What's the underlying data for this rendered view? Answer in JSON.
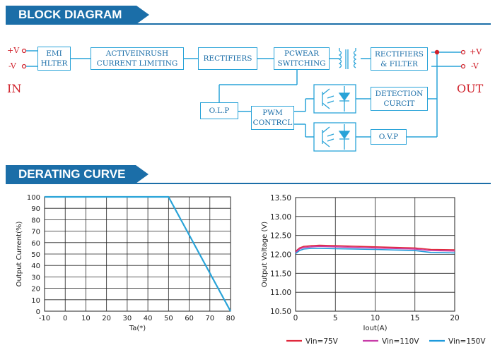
{
  "block_diagram": {
    "title": "BLOCK DIAGRAM",
    "in_plus": "+V",
    "in_minus": "-V",
    "in_label": "IN",
    "out_plus": "+V",
    "out_minus": "-V",
    "out_label": "OUT",
    "blocks": {
      "emi": "EMI\nHLTER",
      "inrush": "ACTIVEINRUSH\nCURRENT  LIMITING",
      "rect_in": "RECTIFIERS",
      "pcwear": "PCWEAR\nSWITCHING",
      "rect_out": "RECTIFIERS\n& FILTER",
      "olp": "O.L.P",
      "pwm": "PWM\nCONTRCL",
      "detection": "DETECTION\nCURCIT",
      "ovp": "O.V.P"
    }
  },
  "derating": {
    "title": "DERATING CURVE"
  },
  "colors": {
    "banner": "#1b6ea8",
    "line": "#29a3d8",
    "label_red": "#d0202a",
    "curve": "#29a3d8"
  },
  "chart_data": [
    {
      "type": "line",
      "xlabel": "Ta(*)",
      "ylabel": "Output Current(%)",
      "xlim": [
        -10,
        80
      ],
      "ylim": [
        0,
        100
      ],
      "xticks": [
        "-10",
        "0",
        "10",
        "20",
        "30",
        "40",
        "50",
        "60",
        "70",
        "80"
      ],
      "yticks": [
        "0",
        "10",
        "20",
        "30",
        "40",
        "50",
        "60",
        "70",
        "80",
        "90",
        "100"
      ],
      "grid": true,
      "series": [
        {
          "x": [
            -10,
            40,
            50,
            80
          ],
          "y": [
            100,
            100,
            100,
            0
          ]
        }
      ]
    },
    {
      "type": "line",
      "xlabel": "Iout(A)",
      "ylabel": "Output Voltage  (V)",
      "xlim": [
        0,
        20
      ],
      "ylim": [
        10.5,
        13.5
      ],
      "xticks": [
        "0",
        "5",
        "10",
        "15",
        "20"
      ],
      "yticks": [
        "10.50",
        "11.00",
        "11.50",
        "12.00",
        "12.50",
        "13.00",
        "13.50"
      ],
      "grid": true,
      "legend": "bottom",
      "series": [
        {
          "name": "Vin=75V",
          "color": "#e0283c",
          "x": [
            0,
            0.5,
            1,
            2,
            3,
            5,
            10,
            15,
            17,
            20
          ],
          "y": [
            12.08,
            12.17,
            12.21,
            12.23,
            12.24,
            12.23,
            12.2,
            12.17,
            12.13,
            12.12
          ]
        },
        {
          "name": "Vin=110V",
          "color": "#c83ca8",
          "x": [
            0,
            0.5,
            1,
            2,
            3,
            5,
            10,
            15,
            17,
            20
          ],
          "y": [
            12.05,
            12.14,
            12.18,
            12.2,
            12.21,
            12.2,
            12.17,
            12.14,
            12.1,
            12.09
          ]
        },
        {
          "name": "Vin=150V",
          "color": "#1e9adc",
          "x": [
            0,
            0.5,
            1,
            2,
            3,
            5,
            10,
            15,
            17,
            20
          ],
          "y": [
            12.02,
            12.1,
            12.14,
            12.16,
            12.16,
            12.15,
            12.13,
            12.1,
            12.05,
            12.04
          ]
        }
      ]
    }
  ]
}
